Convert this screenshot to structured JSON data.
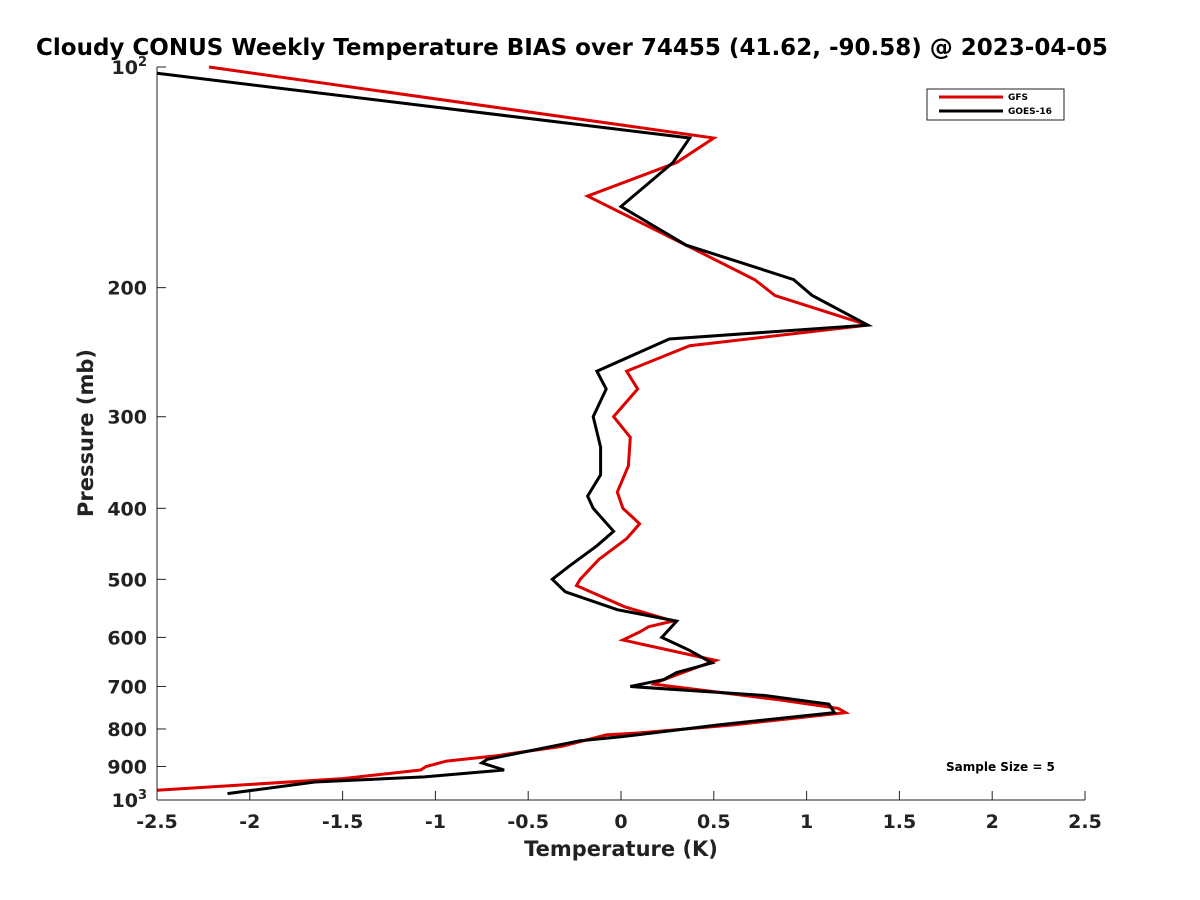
{
  "chart_data": {
    "type": "line",
    "title": "Cloudy CONUS Weekly Temperature BIAS over 74455 (41.62, -90.58) @ 2023-04-05",
    "xlabel": "Temperature (K)",
    "ylabel": "Pressure (mb)",
    "xlim": [
      -2.5,
      2.5
    ],
    "ylim": [
      100,
      1000
    ],
    "yscale": "log",
    "y_reversed": true,
    "grid": false,
    "legend_position": "top-right",
    "x_ticks": [
      "-2.5",
      "-2",
      "-1.5",
      "-1",
      "-0.5",
      "0",
      "0.5",
      "1",
      "1.5",
      "2",
      "2.5"
    ],
    "y_ticks": [
      {
        "value": 100,
        "base": "10",
        "exp": "2"
      },
      {
        "value": 200,
        "label": "200"
      },
      {
        "value": 300,
        "label": "300"
      },
      {
        "value": 400,
        "label": "400"
      },
      {
        "value": 500,
        "label": "500"
      },
      {
        "value": 600,
        "label": "600"
      },
      {
        "value": 700,
        "label": "700"
      },
      {
        "value": 800,
        "label": "800"
      },
      {
        "value": 900,
        "label": "900"
      },
      {
        "value": 1000,
        "base": "10",
        "exp": "3"
      }
    ],
    "annotation": "Sample Size = 5",
    "series": [
      {
        "name": "GFS",
        "color": "#dd0000",
        "points": [
          [
            -2.22,
            100
          ],
          [
            0.5,
            125
          ],
          [
            0.3,
            135
          ],
          [
            -0.18,
            150
          ],
          [
            0.35,
            175
          ],
          [
            0.72,
            195
          ],
          [
            0.83,
            205
          ],
          [
            1.33,
            225
          ],
          [
            0.37,
            240
          ],
          [
            0.03,
            260
          ],
          [
            0.09,
            275
          ],
          [
            -0.04,
            300
          ],
          [
            0.05,
            320
          ],
          [
            0.04,
            350
          ],
          [
            -0.02,
            380
          ],
          [
            0.01,
            400
          ],
          [
            0.1,
            420
          ],
          [
            0.03,
            440
          ],
          [
            -0.12,
            470
          ],
          [
            -0.22,
            500
          ],
          [
            -0.24,
            510
          ],
          [
            0.02,
            545
          ],
          [
            0.28,
            570
          ],
          [
            0.15,
            580
          ],
          [
            0.1,
            590
          ],
          [
            0.01,
            605
          ],
          [
            0.51,
            645
          ],
          [
            0.3,
            675
          ],
          [
            0.2,
            690
          ],
          [
            0.18,
            695
          ],
          [
            0.85,
            730
          ],
          [
            1.17,
            750
          ],
          [
            1.21,
            760
          ],
          [
            0.6,
            790
          ],
          [
            0.1,
            810
          ],
          [
            -0.08,
            815
          ],
          [
            -0.32,
            845
          ],
          [
            -0.67,
            870
          ],
          [
            -0.94,
            885
          ],
          [
            -1.05,
            900
          ],
          [
            -1.08,
            910
          ],
          [
            -1.5,
            935
          ],
          [
            -2.5,
            970
          ]
        ]
      },
      {
        "name": "GOES-16",
        "color": "#000000",
        "points": [
          [
            -2.5,
            102
          ],
          [
            0.37,
            125
          ],
          [
            0.28,
            135
          ],
          [
            0.0,
            155
          ],
          [
            0.35,
            175
          ],
          [
            0.65,
            185
          ],
          [
            0.93,
            195
          ],
          [
            1.03,
            205
          ],
          [
            1.33,
            225
          ],
          [
            0.26,
            235
          ],
          [
            -0.13,
            260
          ],
          [
            -0.08,
            275
          ],
          [
            -0.15,
            300
          ],
          [
            -0.11,
            330
          ],
          [
            -0.11,
            360
          ],
          [
            -0.18,
            385
          ],
          [
            -0.15,
            400
          ],
          [
            -0.04,
            430
          ],
          [
            -0.13,
            450
          ],
          [
            -0.28,
            480
          ],
          [
            -0.37,
            500
          ],
          [
            -0.3,
            520
          ],
          [
            -0.02,
            550
          ],
          [
            0.3,
            570
          ],
          [
            0.22,
            600
          ],
          [
            0.37,
            625
          ],
          [
            0.49,
            650
          ],
          [
            0.3,
            670
          ],
          [
            0.23,
            685
          ],
          [
            0.05,
            700
          ],
          [
            0.77,
            720
          ],
          [
            1.12,
            740
          ],
          [
            1.15,
            760
          ],
          [
            0.52,
            790
          ],
          [
            0.0,
            820
          ],
          [
            -0.22,
            830
          ],
          [
            -0.72,
            880
          ],
          [
            -0.75,
            890
          ],
          [
            -0.63,
            910
          ],
          [
            -1.06,
            930
          ],
          [
            -1.65,
            945
          ],
          [
            -2.12,
            980
          ]
        ]
      }
    ]
  }
}
